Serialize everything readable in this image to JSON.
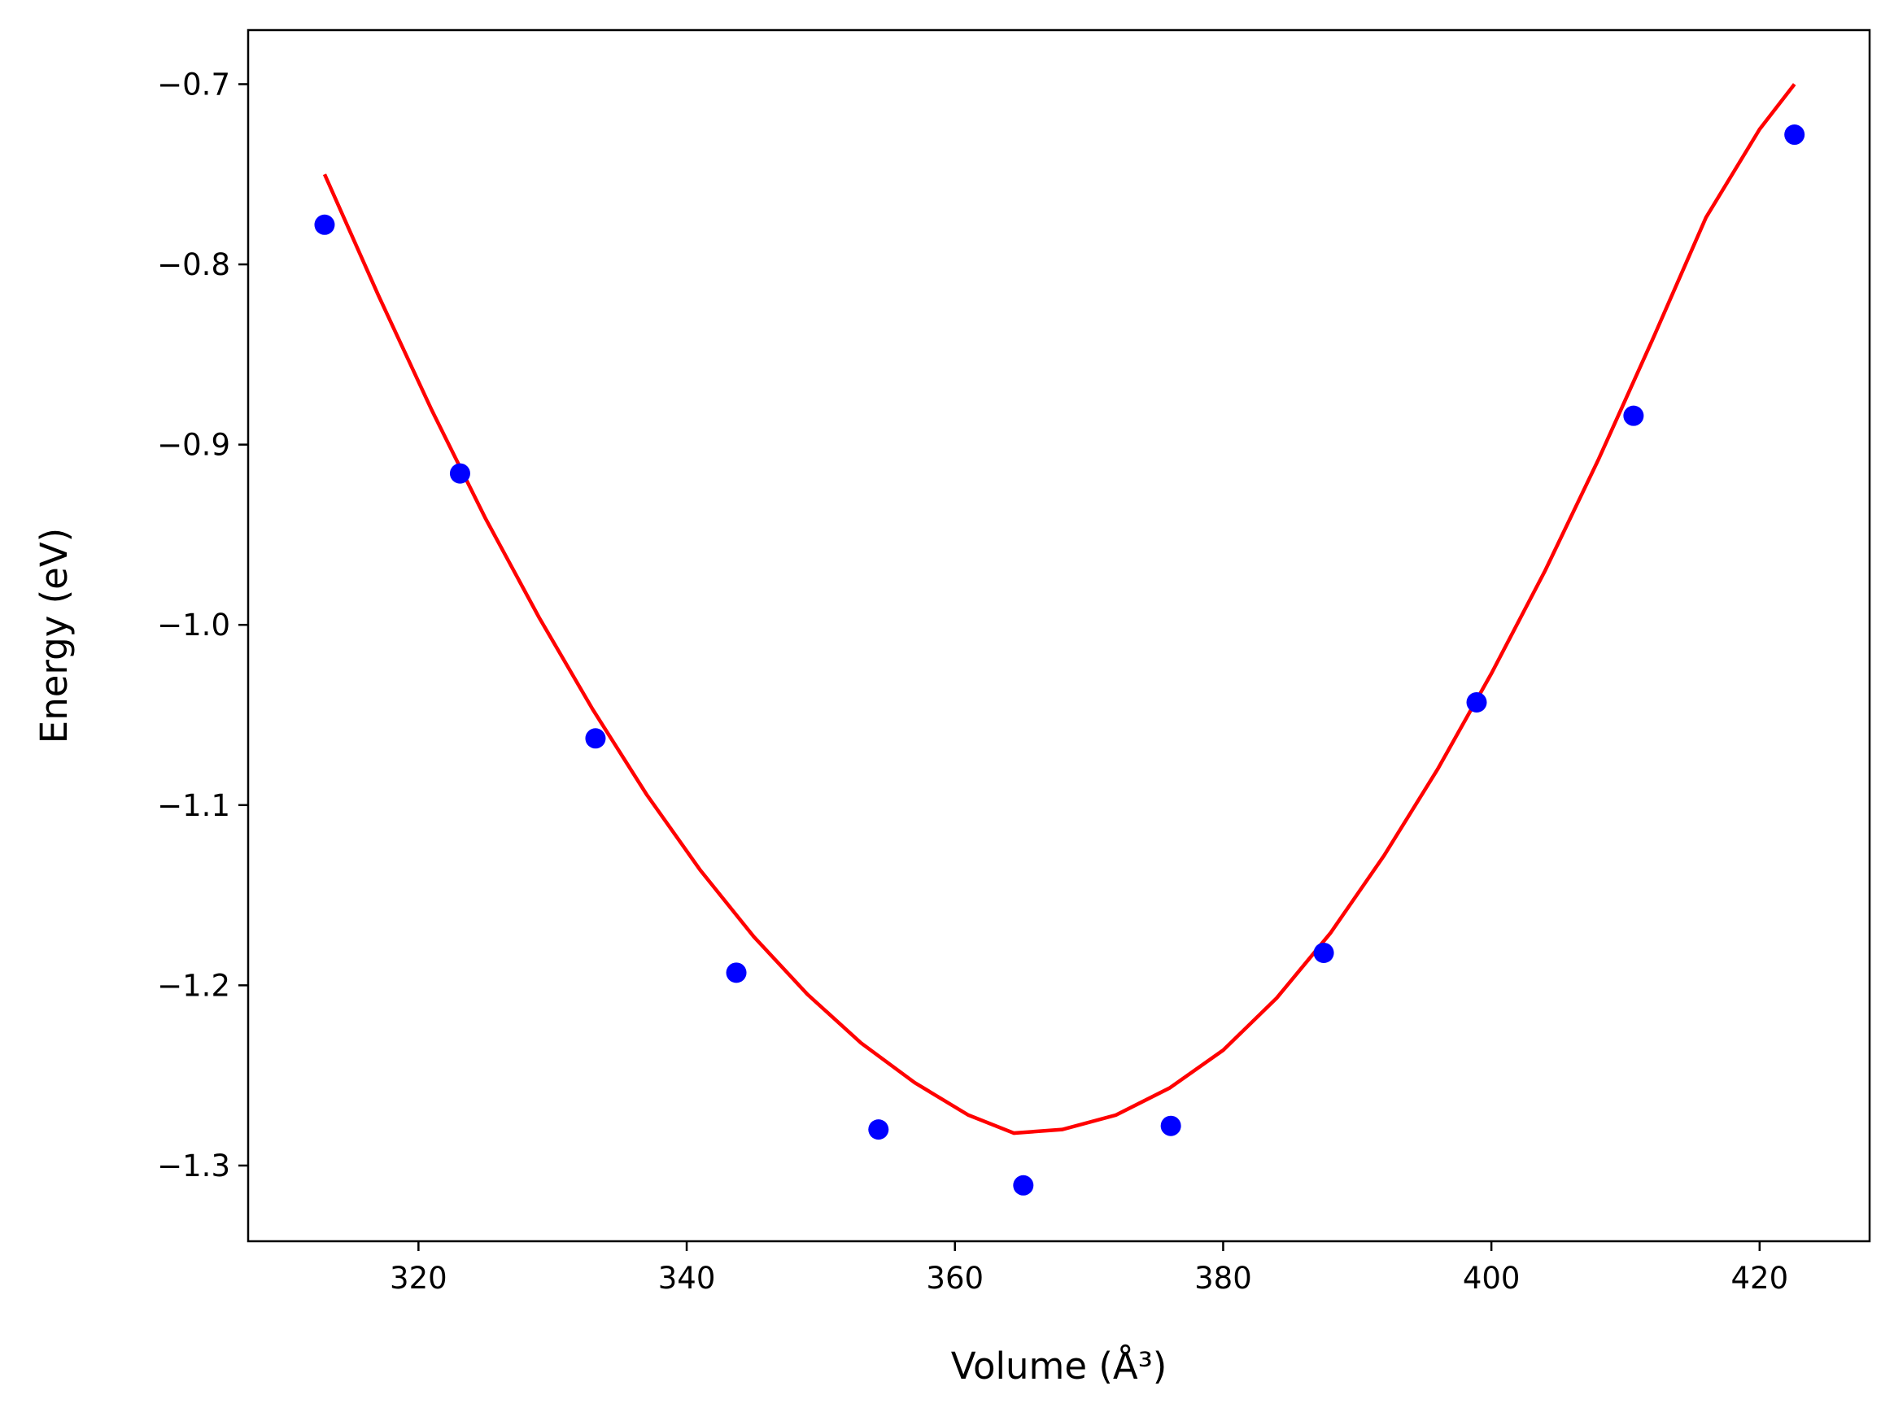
{
  "chart_data": {
    "type": "scatter",
    "title": "",
    "xlabel": "Volume (Å³)",
    "ylabel": "Energy (eV)",
    "xlim": [
      307.3,
      428.2
    ],
    "ylim": [
      -1.342,
      -0.67
    ],
    "xticks": [
      320,
      340,
      360,
      380,
      400,
      420
    ],
    "xtick_labels": [
      "320",
      "340",
      "360",
      "380",
      "400",
      "420"
    ],
    "yticks": [
      -0.7,
      -0.8,
      -0.9,
      -1.0,
      -1.1,
      -1.2,
      -1.3
    ],
    "ytick_labels": [
      "−0.7",
      "−0.8",
      "−0.9",
      "−1.0",
      "−1.1",
      "−1.2",
      "−1.3"
    ],
    "grid": false,
    "colors": {
      "points": "#0000ff",
      "fit": "#ff0000"
    },
    "series": [
      {
        "kind": "points",
        "x": [
          313.0,
          323.1,
          333.2,
          343.7,
          354.3,
          365.1,
          376.1,
          387.5,
          398.9,
          410.6,
          422.6
        ],
        "y": [
          -0.778,
          -0.916,
          -1.063,
          -1.193,
          -1.28,
          -1.311,
          -1.278,
          -1.182,
          -1.043,
          -0.884,
          -0.728
        ]
      },
      {
        "kind": "fit_line",
        "x": [
          313.0,
          317.0,
          321.0,
          325.0,
          329.0,
          333.0,
          337.0,
          341.0,
          345.0,
          349.0,
          353.0,
          357.0,
          361.0,
          364.4,
          368.0,
          372.0,
          376.0,
          380.0,
          384.0,
          388.0,
          392.0,
          396.0,
          400.0,
          404.0,
          408.0,
          412.0,
          416.0,
          420.0,
          422.6
        ],
        "y": [
          -0.75,
          -0.817,
          -0.881,
          -0.941,
          -0.996,
          -1.047,
          -1.094,
          -1.136,
          -1.173,
          -1.205,
          -1.232,
          -1.254,
          -1.272,
          -1.282,
          -1.28,
          -1.272,
          -1.257,
          -1.236,
          -1.207,
          -1.171,
          -1.128,
          -1.08,
          -1.027,
          -0.97,
          -0.908,
          -0.842,
          -0.774,
          -0.725,
          -0.7
        ]
      }
    ]
  }
}
